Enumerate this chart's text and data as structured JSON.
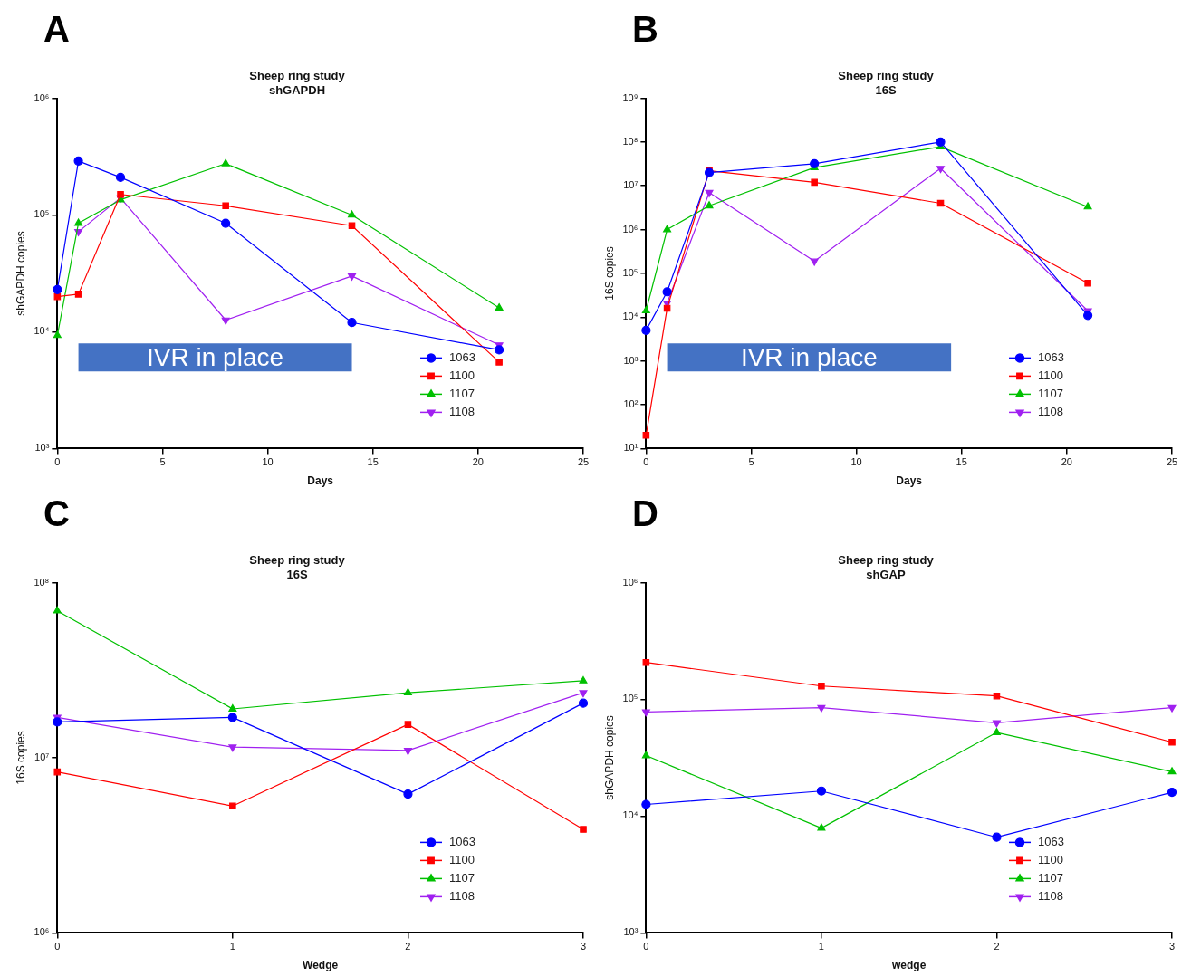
{
  "chart_data": [
    {
      "type": "line",
      "title": "Sheep ring study\nshGAPDH",
      "xlabel": "Days",
      "ylabel": "shGAPDH copies",
      "log": "y",
      "legend": "bottom right",
      "annotations": [
        "A"
      ],
      "bands": [
        {
          "axis": "x",
          "from": 1,
          "to": 14,
          "label": "IVR in place",
          "color": "#4472c4"
        }
      ],
      "x": [
        0,
        1,
        3,
        8,
        14,
        21
      ],
      "xlim": [
        0,
        25
      ],
      "xticks": [
        0,
        5,
        10,
        15,
        20,
        25
      ],
      "ylim": [
        1000,
        1000000
      ],
      "yticks": [
        {
          "value": 1000,
          "label": "10³"
        },
        {
          "value": 10000,
          "label": "10⁴"
        },
        {
          "value": 100000,
          "label": "10⁵"
        },
        {
          "value": 1000000,
          "label": "10⁶"
        }
      ],
      "series": [
        {
          "name": "1063",
          "color": "#0000ff",
          "marker": "circle",
          "values": [
            23000,
            290000,
            210000,
            85000,
            12000,
            7000
          ]
        },
        {
          "name": "1100",
          "color": "#ff0000",
          "marker": "square",
          "values": [
            20000,
            21000,
            150000,
            120000,
            81000,
            5500
          ]
        },
        {
          "name": "1107",
          "color": "#00c000",
          "marker": "triangle",
          "values": [
            9300,
            85000,
            135000,
            275000,
            100000,
            16000
          ]
        },
        {
          "name": "1108",
          "color": "#a020f0",
          "marker": "triangle-down",
          "values": [
            null,
            72000,
            140000,
            12600,
            30000,
            7700
          ]
        }
      ]
    },
    {
      "type": "line",
      "title": "Sheep ring study\n16S",
      "xlabel": "Days",
      "ylabel": "16S copies",
      "log": "y",
      "legend": "bottom right",
      "annotations": [
        "B"
      ],
      "bands": [
        {
          "axis": "x",
          "from": 1,
          "to": 14.5,
          "label": "IVR in place",
          "color": "#4472c4"
        }
      ],
      "x": [
        0,
        1,
        3,
        8,
        14,
        21
      ],
      "xlim": [
        0,
        25
      ],
      "xticks": [
        0,
        5,
        10,
        15,
        20,
        25
      ],
      "ylim": [
        10,
        1000000000
      ],
      "yticks": [
        {
          "value": 10,
          "label": "10¹"
        },
        {
          "value": 100,
          "label": "10²"
        },
        {
          "value": 1000,
          "label": "10³"
        },
        {
          "value": 10000,
          "label": "10⁴"
        },
        {
          "value": 100000,
          "label": "10⁵"
        },
        {
          "value": 1000000,
          "label": "10⁶"
        },
        {
          "value": 10000000,
          "label": "10⁷"
        },
        {
          "value": 100000000,
          "label": "10⁸"
        },
        {
          "value": 1000000000,
          "label": "10⁹"
        }
      ],
      "series": [
        {
          "name": "1063",
          "color": "#0000ff",
          "marker": "circle",
          "values": [
            5000,
            38000,
            20000000,
            32000000,
            100000000,
            11000
          ]
        },
        {
          "name": "1100",
          "color": "#ff0000",
          "marker": "square",
          "values": [
            20,
            16000,
            22000000,
            12000000,
            4000000,
            60000
          ]
        },
        {
          "name": "1107",
          "color": "#00c000",
          "marker": "triangle",
          "values": [
            14000,
            1000000,
            3500000,
            26000000,
            78000000,
            3300000
          ]
        },
        {
          "name": "1108",
          "color": "#a020f0",
          "marker": "triangle-down",
          "values": [
            null,
            21000,
            7000000,
            190000,
            25000000,
            14000
          ]
        }
      ]
    },
    {
      "type": "line",
      "title": "Sheep ring study\n16S",
      "xlabel": "Wedge",
      "ylabel": "16S copies",
      "log": "y",
      "legend": "bottom right",
      "annotations": [
        "C"
      ],
      "x": [
        0,
        1,
        2,
        3
      ],
      "xlim": [
        0,
        3
      ],
      "xticks": [
        0,
        1,
        2,
        3
      ],
      "ylim": [
        1000000,
        100000000
      ],
      "yticks": [
        {
          "value": 1000000,
          "label": "10⁶"
        },
        {
          "value": 10000000,
          "label": "10⁷"
        },
        {
          "value": 100000000,
          "label": "10⁸"
        }
      ],
      "series": [
        {
          "name": "1063",
          "color": "#0000ff",
          "marker": "circle",
          "values": [
            16000000,
            17000000,
            6200000,
            20500000
          ]
        },
        {
          "name": "1100",
          "color": "#ff0000",
          "marker": "square",
          "values": [
            8300000,
            5300000,
            15500000,
            3900000
          ]
        },
        {
          "name": "1107",
          "color": "#00c000",
          "marker": "triangle",
          "values": [
            69000000,
            19000000,
            23500000,
            27500000
          ]
        },
        {
          "name": "1108",
          "color": "#a020f0",
          "marker": "triangle-down",
          "values": [
            17000000,
            11500000,
            11000000,
            23500000
          ]
        }
      ]
    },
    {
      "type": "line",
      "title": "Sheep ring study\nshGAP",
      "xlabel": "wedge",
      "ylabel": "shGAPDH copies",
      "log": "y",
      "legend": "bottom right",
      "annotations": [
        "D"
      ],
      "x": [
        0,
        1,
        2,
        3
      ],
      "xlim": [
        0,
        3
      ],
      "xticks": [
        0,
        1,
        2,
        3
      ],
      "ylim": [
        1000,
        1000000
      ],
      "yticks": [
        {
          "value": 1000,
          "label": "10³"
        },
        {
          "value": 10000,
          "label": "10⁴"
        },
        {
          "value": 100000,
          "label": "10⁵"
        },
        {
          "value": 1000000,
          "label": "10⁶"
        }
      ],
      "series": [
        {
          "name": "1063",
          "color": "#0000ff",
          "marker": "circle",
          "values": [
            12600,
            16400,
            6600,
            16000
          ]
        },
        {
          "name": "1100",
          "color": "#ff0000",
          "marker": "square",
          "values": [
            207000,
            130000,
            107000,
            43000
          ]
        },
        {
          "name": "1107",
          "color": "#00c000",
          "marker": "triangle",
          "values": [
            33000,
            7900,
            52000,
            24000
          ]
        },
        {
          "name": "1108",
          "color": "#a020f0",
          "marker": "triangle-down",
          "values": [
            78000,
            85000,
            63000,
            85000
          ]
        }
      ]
    }
  ]
}
